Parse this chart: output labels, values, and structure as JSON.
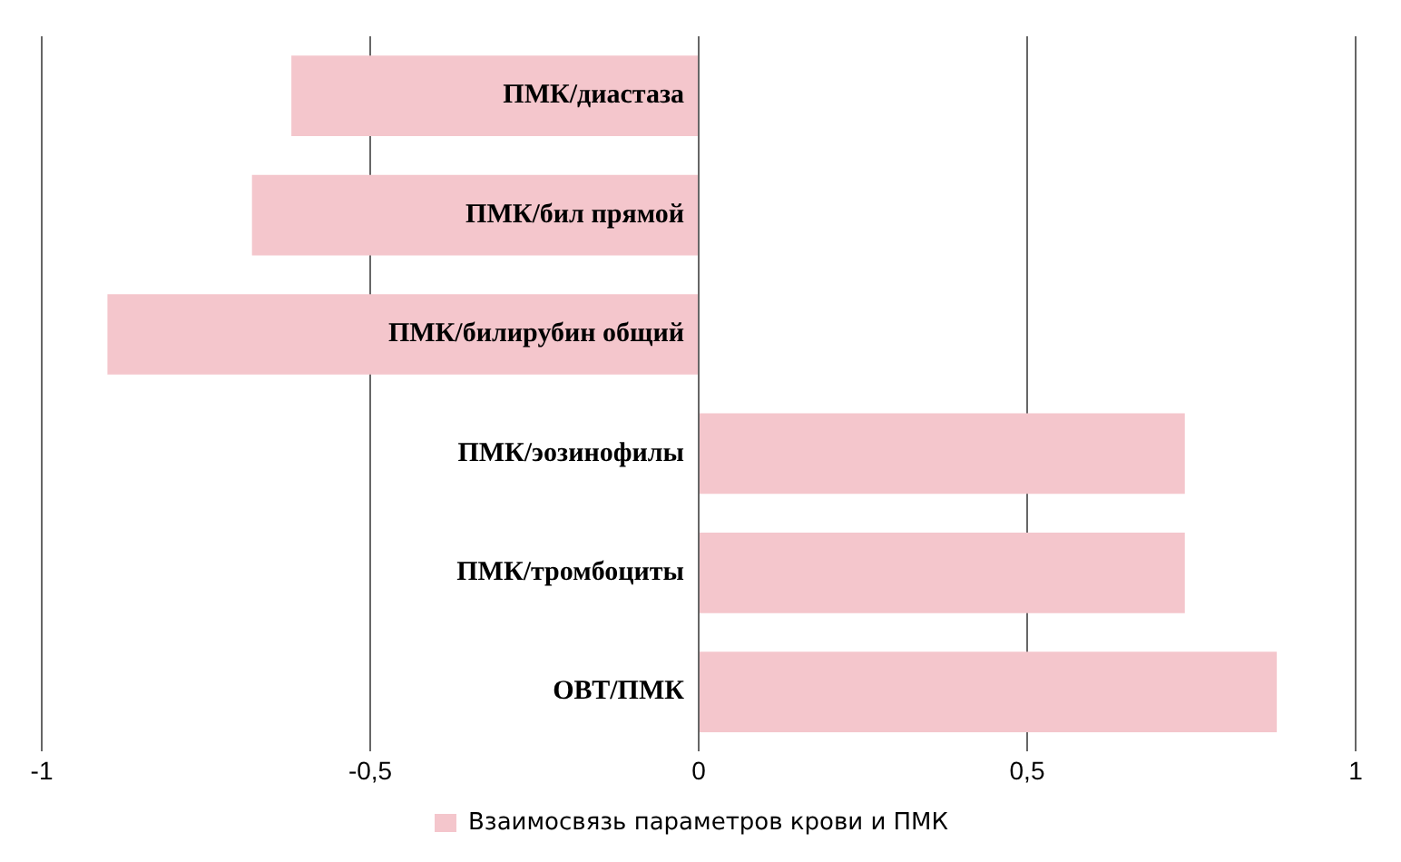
{
  "chart_data": {
    "type": "bar",
    "orientation": "horizontal",
    "categories": [
      "ПМК/диастаза",
      "ПМК/бил прямой",
      "ПМК/билирубин общий",
      "ПМК/эозинофилы",
      "ПМК/тромбоциты",
      "ОВТ/ПМК"
    ],
    "series": [
      {
        "name": "Взаимосвязь параметров крови и ПМК",
        "color": "#f4c6cc",
        "values": [
          -0.62,
          -0.68,
          -0.9,
          0.74,
          0.74,
          0.88
        ]
      }
    ],
    "xlim": [
      -1,
      1
    ],
    "xticks": [
      {
        "value": -1,
        "label": "-1"
      },
      {
        "value": -0.5,
        "label": "-0,5"
      },
      0,
      {
        "value": 0.5,
        "label": "0,5"
      },
      1
    ],
    "grid": "x",
    "legend": "bottom"
  }
}
